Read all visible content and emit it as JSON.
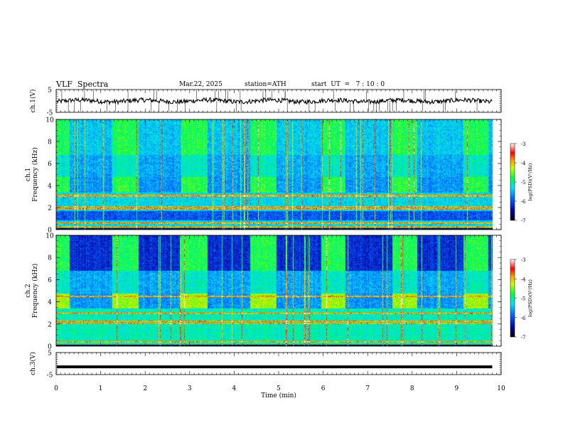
{
  "header": {
    "title": "VLF  Spectra",
    "date": "Mar.22, 2025",
    "station": "station=ATH",
    "start": "start  UT  =   7 : 10 : 0"
  },
  "chart_data": [
    {
      "type": "line",
      "panel": "ch1-voltage",
      "ylabel": "ch.1(V)",
      "ylim": [
        -5,
        5
      ],
      "y_ticks": [
        "5",
        "-5"
      ],
      "xlim": [
        0,
        10
      ],
      "series": [
        {
          "mean": 0.0,
          "noise_amplitude": 1.0
        }
      ]
    },
    {
      "type": "heatmap",
      "panel": "ch1-spectrogram",
      "ylabel": "ch.1\nFrequency (kHz)",
      "ylim": [
        0,
        10
      ],
      "y_ticks": [
        "0",
        "2",
        "4",
        "6",
        "8",
        "10"
      ],
      "xlim": [
        0,
        10
      ],
      "data_end_min": 9.8,
      "colorbar": {
        "label": "log(PSD)(V²/Hz)",
        "range": [
          -7,
          -3
        ],
        "ticks": [
          "-3",
          "-4",
          "-5",
          "-6",
          "-7"
        ]
      },
      "quiet_segments_min": [
        [
          0,
          0.3
        ],
        [
          1.25,
          1.85
        ],
        [
          2.8,
          3.4
        ],
        [
          4.35,
          4.95
        ],
        [
          5.95,
          6.5
        ],
        [
          7.55,
          8.1
        ],
        [
          9.15,
          9.7
        ]
      ],
      "transmitter_lines_khz": [
        0.3,
        0.6,
        1.9,
        2.1,
        3.1
      ]
    },
    {
      "type": "heatmap",
      "panel": "ch2-spectrogram",
      "ylabel": "ch.2\nFrequency (kHz)",
      "ylim": [
        0,
        10
      ],
      "y_ticks": [
        "0",
        "2",
        "4",
        "6",
        "8",
        "10"
      ],
      "xlim": [
        0,
        10
      ],
      "data_end_min": 9.8,
      "colorbar": {
        "label": "log(PSD)(V²/Hz)",
        "range": [
          -7,
          -3
        ],
        "ticks": [
          "-3",
          "-4",
          "-5",
          "-6",
          "-7"
        ]
      },
      "quiet_segments_min": [
        [
          0,
          0.3
        ],
        [
          1.25,
          1.85
        ],
        [
          2.8,
          3.4
        ],
        [
          4.35,
          4.95
        ],
        [
          5.95,
          6.5
        ],
        [
          7.55,
          8.1
        ],
        [
          9.15,
          9.7
        ]
      ],
      "transmitter_lines_khz": [
        0.4,
        2.1,
        2.3,
        3.0,
        4.5
      ]
    },
    {
      "type": "line",
      "panel": "ch3-voltage",
      "ylabel": "ch.3(V)",
      "ylim": [
        -5,
        5
      ],
      "y_ticks": [
        "5",
        "-5"
      ],
      "xlim": [
        0,
        10
      ],
      "series": [
        {
          "mean": -1.5,
          "noise_amplitude": 0.0
        }
      ]
    }
  ],
  "x_axis": {
    "label": "Time  (min)",
    "ticks": [
      "0",
      "1",
      "2",
      "3",
      "4",
      "5",
      "6",
      "7",
      "8",
      "9",
      "10"
    ]
  }
}
